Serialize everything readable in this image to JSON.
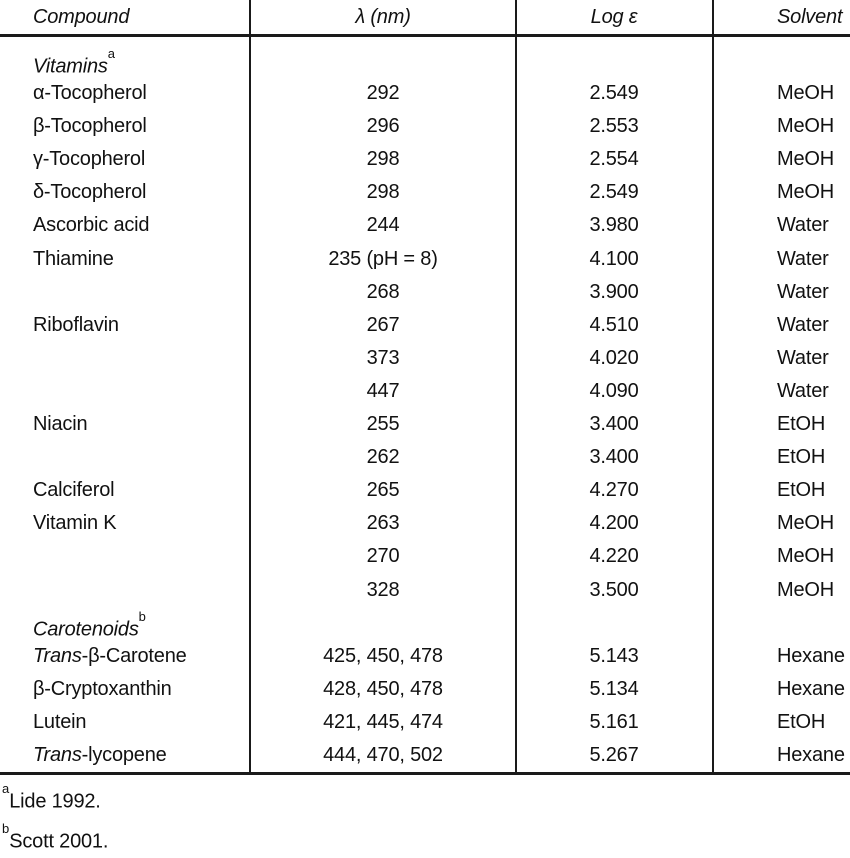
{
  "table": {
    "headers": [
      "Compound",
      "λ (nm)",
      "Log ε",
      "Solvent"
    ],
    "rows": [
      {
        "section": true,
        "compound": [
          {
            "t": "Vitamins",
            "s": "i"
          },
          {
            "t": "a",
            "s": "sup"
          }
        ],
        "lambda": "",
        "log_e": "",
        "solvent": ""
      },
      {
        "compound": [
          {
            "t": "α-Tocopherol"
          }
        ],
        "lambda": "292",
        "log_e": "2.549",
        "solvent": "MeOH"
      },
      {
        "compound": [
          {
            "t": "β-Tocopherol"
          }
        ],
        "lambda": "296",
        "log_e": "2.553",
        "solvent": "MeOH"
      },
      {
        "compound": [
          {
            "t": "γ-Tocopherol"
          }
        ],
        "lambda": "298",
        "log_e": "2.554",
        "solvent": "MeOH"
      },
      {
        "compound": [
          {
            "t": "δ-Tocopherol"
          }
        ],
        "lambda": "298",
        "log_e": "2.549",
        "solvent": "MeOH"
      },
      {
        "compound": [
          {
            "t": "Ascorbic acid"
          }
        ],
        "lambda": "244",
        "log_e": "3.980",
        "solvent": "Water"
      },
      {
        "compound": [
          {
            "t": "Thiamine"
          }
        ],
        "lambda": "235 (pH = 8)",
        "log_e": "4.100",
        "solvent": "Water"
      },
      {
        "compound": [],
        "lambda": "268",
        "log_e": "3.900",
        "solvent": "Water"
      },
      {
        "compound": [
          {
            "t": "Riboflavin"
          }
        ],
        "lambda": "267",
        "log_e": "4.510",
        "solvent": "Water"
      },
      {
        "compound": [],
        "lambda": "373",
        "log_e": "4.020",
        "solvent": "Water"
      },
      {
        "compound": [],
        "lambda": "447",
        "log_e": "4.090",
        "solvent": "Water"
      },
      {
        "compound": [
          {
            "t": "Niacin"
          }
        ],
        "lambda": "255",
        "log_e": "3.400",
        "solvent": "EtOH"
      },
      {
        "compound": [],
        "lambda": "262",
        "log_e": "3.400",
        "solvent": "EtOH"
      },
      {
        "compound": [
          {
            "t": "Calciferol"
          }
        ],
        "lambda": "265",
        "log_e": "4.270",
        "solvent": "EtOH"
      },
      {
        "compound": [
          {
            "t": "Vitamin K"
          }
        ],
        "lambda": "263",
        "log_e": "4.200",
        "solvent": "MeOH"
      },
      {
        "compound": [],
        "lambda": "270",
        "log_e": "4.220",
        "solvent": "MeOH"
      },
      {
        "compound": [],
        "lambda": "328",
        "log_e": "3.500",
        "solvent": "MeOH"
      },
      {
        "section": true,
        "compound": [
          {
            "t": "Carotenoids",
            "s": "i"
          },
          {
            "t": "b",
            "s": "sup"
          }
        ],
        "lambda": "",
        "log_e": "",
        "solvent": ""
      },
      {
        "compound": [
          {
            "t": "Trans",
            "s": "i"
          },
          {
            "t": "-β-Carotene"
          }
        ],
        "lambda": "425, 450, 478",
        "log_e": "5.143",
        "solvent": "Hexane"
      },
      {
        "compound": [
          {
            "t": "β-Cryptoxanthin"
          }
        ],
        "lambda": "428, 450, 478",
        "log_e": "5.134",
        "solvent": "Hexane"
      },
      {
        "compound": [
          {
            "t": "Lutein"
          }
        ],
        "lambda": "421, 445, 474",
        "log_e": "5.161",
        "solvent": "EtOH"
      },
      {
        "compound": [
          {
            "t": "Trans",
            "s": "i"
          },
          {
            "t": "-lycopene"
          }
        ],
        "lambda": "444, 470, 502",
        "log_e": "5.267",
        "solvent": "Hexane"
      }
    ],
    "footnotes": [
      {
        "marker": "a",
        "text": "Lide 1992."
      },
      {
        "marker": "b",
        "text": "Scott 2001."
      }
    ]
  },
  "colors": {
    "text": "#111111",
    "rule": "#1a1a1a",
    "background": "#ffffff"
  }
}
